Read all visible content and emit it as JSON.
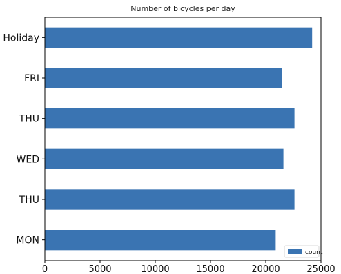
{
  "chart_data": {
    "type": "bar",
    "orientation": "horizontal",
    "title": "Number of bicycles per day",
    "xlabel": "",
    "ylabel": "",
    "categories": [
      "Holiday",
      "FRI",
      "THU",
      "WED",
      "THU",
      "MON"
    ],
    "series": [
      {
        "name": "count",
        "values": [
          24200,
          21500,
          22600,
          21600,
          22600,
          20900
        ],
        "color": "#3a74b2"
      }
    ],
    "xlim": [
      0,
      25000
    ],
    "xticks": [
      0,
      5000,
      10000,
      15000,
      20000,
      25000
    ],
    "grid": false,
    "legend_position": "bottom-right"
  }
}
